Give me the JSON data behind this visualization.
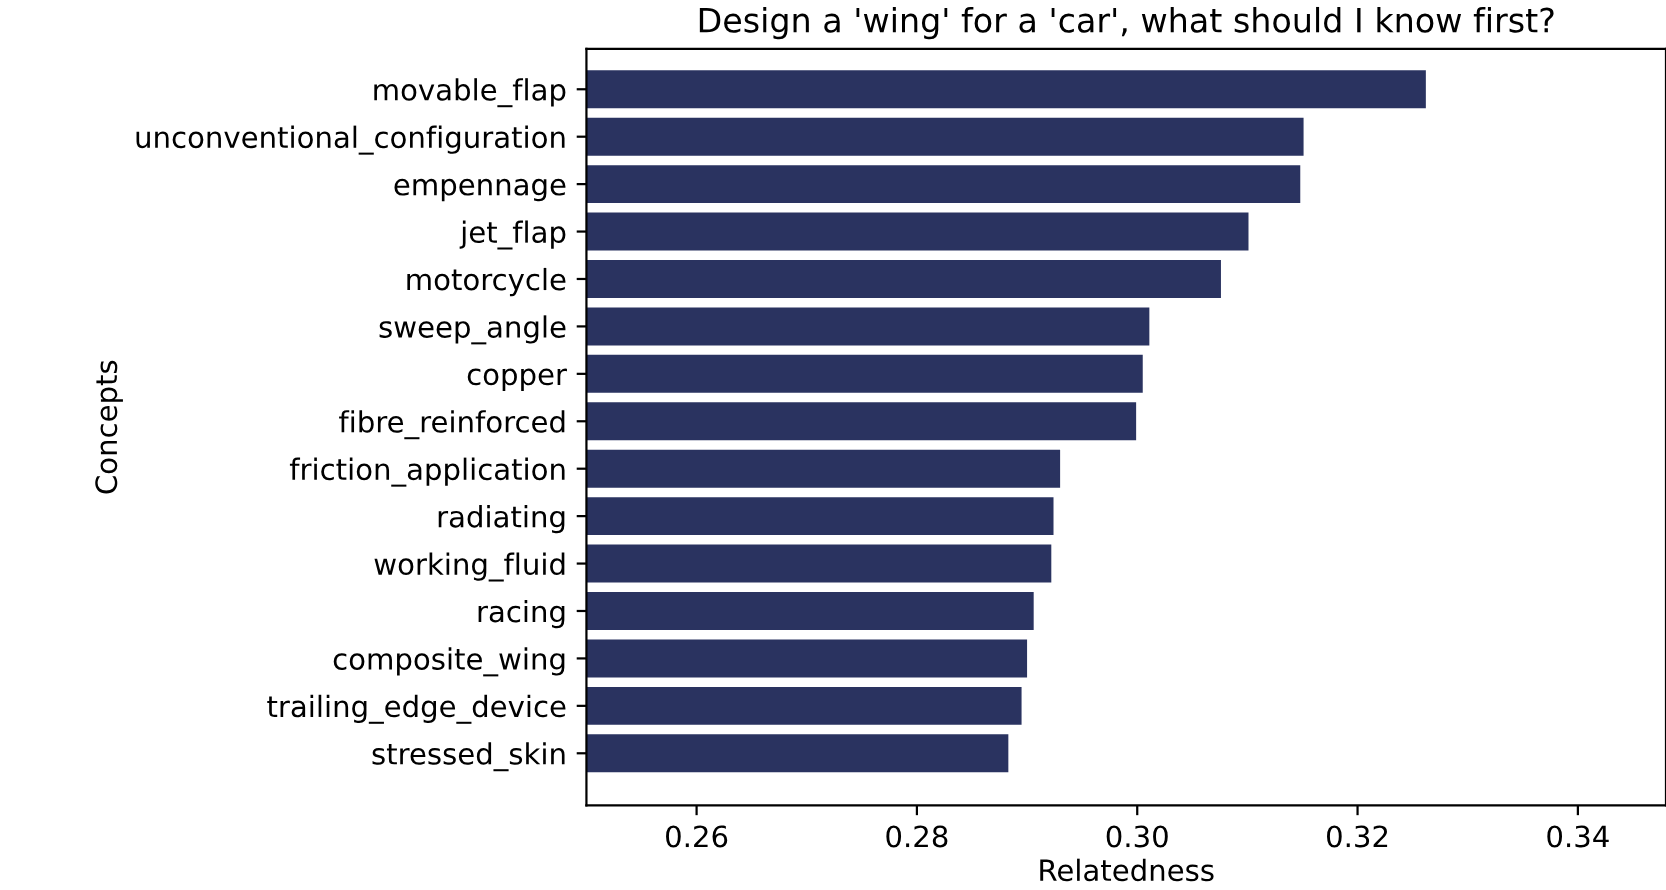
{
  "chart_data": {
    "type": "bar",
    "orientation": "horizontal",
    "title": "Design a 'wing' for a 'car', what should I know first?",
    "xlabel": "Relatedness",
    "ylabel": "Concepts",
    "categories": [
      "movable_flap",
      "unconventional_configuration",
      "empennage",
      "jet_flap",
      "motorcycle",
      "sweep_angle",
      "copper",
      "fibre_reinforced",
      "friction_application",
      "radiating",
      "working_fluid",
      "racing",
      "composite_wing",
      "trailing_edge_device",
      "stressed_skin"
    ],
    "values": [
      0.3262,
      0.3151,
      0.3148,
      0.3101,
      0.3076,
      0.3011,
      0.3005,
      0.2999,
      0.293,
      0.2924,
      0.2922,
      0.2906,
      0.29,
      0.2895,
      0.2883
    ],
    "color": "#2a3360",
    "xlim": [
      0.25,
      0.348
    ],
    "xticks": [
      0.26,
      0.28,
      {
        "value": 0.3,
        "label": "0.30"
      },
      0.32,
      0.34
    ],
    "grid": false,
    "legend": false
  }
}
